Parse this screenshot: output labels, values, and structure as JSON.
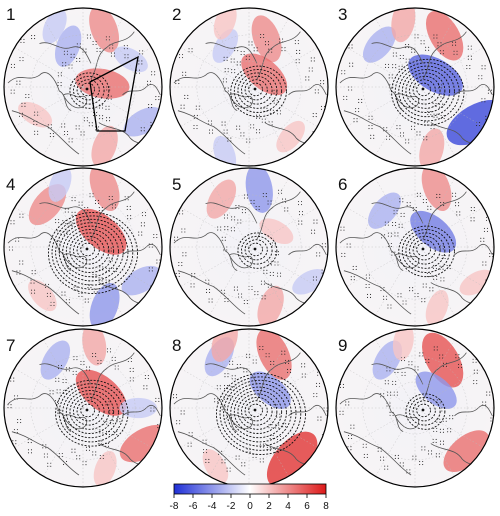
{
  "figure": {
    "panels": [
      {
        "label": "1",
        "has_box": true,
        "anomalies": [
          {
            "lon": 160,
            "r": 0.78,
            "value": 4
          },
          {
            "lon": -160,
            "r": 0.55,
            "value": -3
          },
          {
            "lon": 205,
            "r": 0.85,
            "value": -2
          },
          {
            "lon": 20,
            "r": 0.8,
            "value": 3
          },
          {
            "lon": 60,
            "r": 0.88,
            "value": -3
          },
          {
            "lon": 100,
            "r": 0.25,
            "value": 5
          },
          {
            "lon": -60,
            "r": 0.7,
            "value": 2
          },
          {
            "lon": 120,
            "r": 0.7,
            "value": -2
          }
        ]
      },
      {
        "label": "2",
        "has_box": false,
        "anomalies": [
          {
            "lon": 160,
            "r": 0.65,
            "value": 4
          },
          {
            "lon": 130,
            "r": 0.25,
            "value": 5
          },
          {
            "lon": -150,
            "r": 0.6,
            "value": -2
          },
          {
            "lon": 40,
            "r": 0.82,
            "value": 2
          },
          {
            "lon": -20,
            "r": 0.9,
            "value": -2
          },
          {
            "lon": 200,
            "r": 0.88,
            "value": 2
          }
        ]
      },
      {
        "label": "3",
        "has_box": false,
        "anomalies": [
          {
            "lon": 150,
            "r": 0.75,
            "value": 5
          },
          {
            "lon": 120,
            "r": 0.3,
            "value": -6
          },
          {
            "lon": 60,
            "r": 0.9,
            "value": -7
          },
          {
            "lon": 15,
            "r": 0.82,
            "value": 3
          },
          {
            "lon": -140,
            "r": 0.7,
            "value": -3
          },
          {
            "lon": 190,
            "r": 0.85,
            "value": 3
          }
        ]
      },
      {
        "label": "4",
        "has_box": false,
        "anomalies": [
          {
            "lon": 130,
            "r": 0.3,
            "value": 6
          },
          {
            "lon": 160,
            "r": 0.8,
            "value": 4
          },
          {
            "lon": -140,
            "r": 0.7,
            "value": 4
          },
          {
            "lon": 20,
            "r": 0.8,
            "value": -4
          },
          {
            "lon": 60,
            "r": 0.85,
            "value": -3
          },
          {
            "lon": -40,
            "r": 0.8,
            "value": 2
          },
          {
            "lon": 200,
            "r": 0.85,
            "value": -2
          }
        ]
      },
      {
        "label": "5",
        "has_box": false,
        "anomalies": [
          {
            "lon": 170,
            "r": 0.75,
            "value": -4
          },
          {
            "lon": -150,
            "r": 0.7,
            "value": 3
          },
          {
            "lon": 20,
            "r": 0.8,
            "value": 3
          },
          {
            "lon": 60,
            "r": 0.88,
            "value": -2
          },
          {
            "lon": 120,
            "r": 0.4,
            "value": 2
          }
        ]
      },
      {
        "label": "6",
        "has_box": false,
        "anomalies": [
          {
            "lon": 130,
            "r": 0.3,
            "value": -5
          },
          {
            "lon": 160,
            "r": 0.8,
            "value": 4
          },
          {
            "lon": -140,
            "r": 0.6,
            "value": -3
          },
          {
            "lon": 20,
            "r": 0.82,
            "value": 2
          },
          {
            "lon": 60,
            "r": 0.9,
            "value": 2
          }
        ]
      },
      {
        "label": "7",
        "has_box": false,
        "anomalies": [
          {
            "lon": 130,
            "r": 0.3,
            "value": 6
          },
          {
            "lon": 60,
            "r": 0.9,
            "value": 5
          },
          {
            "lon": -150,
            "r": 0.7,
            "value": -3
          },
          {
            "lon": 170,
            "r": 0.82,
            "value": 3
          },
          {
            "lon": 20,
            "r": 0.82,
            "value": 2
          },
          {
            "lon": 90,
            "r": 0.7,
            "value": -2
          }
        ]
      },
      {
        "label": "8",
        "has_box": false,
        "anomalies": [
          {
            "lon": 40,
            "r": 0.85,
            "value": 7
          },
          {
            "lon": 155,
            "r": 0.75,
            "value": 5
          },
          {
            "lon": -150,
            "r": 0.75,
            "value": -3
          },
          {
            "lon": 130,
            "r": 0.35,
            "value": -4
          },
          {
            "lon": 200,
            "r": 0.9,
            "value": 3
          },
          {
            "lon": -30,
            "r": 0.85,
            "value": 2
          }
        ]
      },
      {
        "label": "9",
        "has_box": false,
        "anomalies": [
          {
            "lon": 150,
            "r": 0.7,
            "value": 6
          },
          {
            "lon": 50,
            "r": 0.85,
            "value": 5
          },
          {
            "lon": 130,
            "r": 0.35,
            "value": -4
          },
          {
            "lon": -150,
            "r": 0.7,
            "value": -3
          },
          {
            "lon": 190,
            "r": 0.85,
            "value": 2
          }
        ]
      }
    ]
  },
  "colorbar": {
    "ticks": [
      "-8",
      "-6",
      "-4",
      "-2",
      "0",
      "2",
      "4",
      "6",
      "8"
    ],
    "min": -8,
    "max": 8,
    "colors": {
      "low": "#1f2fd6",
      "mid": "#ffffff",
      "high": "#dd1818"
    }
  },
  "colors": {
    "coast": "#555555",
    "contour": "#111111",
    "stipple": "#222222",
    "border": "#000000"
  }
}
